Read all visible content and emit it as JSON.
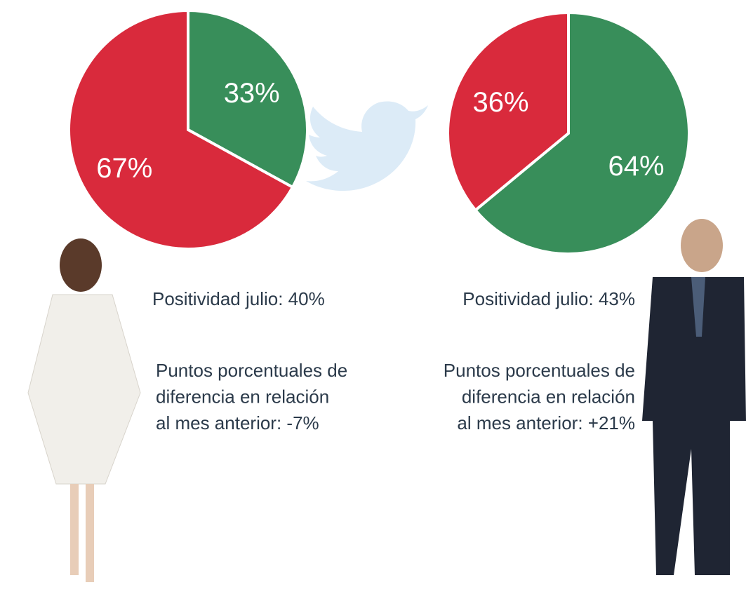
{
  "chart_data": [
    {
      "type": "pie",
      "categories": [
        null,
        null
      ],
      "values": [
        33,
        67
      ],
      "value_labels": [
        "33%",
        "67%"
      ],
      "colors": [
        "#388e5a",
        "#d92a3c"
      ],
      "annotations": {
        "positivity": "Positividad julio: 40%",
        "change": [
          "Puntos porcentuales de",
          "diferencia en relación",
          "al mes anterior: -7%"
        ]
      }
    },
    {
      "type": "pie",
      "categories": [
        null,
        null
      ],
      "values": [
        64,
        36
      ],
      "value_labels": [
        "64%",
        "36%"
      ],
      "colors": [
        "#388e5a",
        "#d92a3c"
      ],
      "annotations": {
        "positivity": "Positividad julio: 43%",
        "change": [
          "Puntos porcentuales de",
          "diferencia en relación",
          "al mes anterior: +21%"
        ]
      }
    }
  ]
}
